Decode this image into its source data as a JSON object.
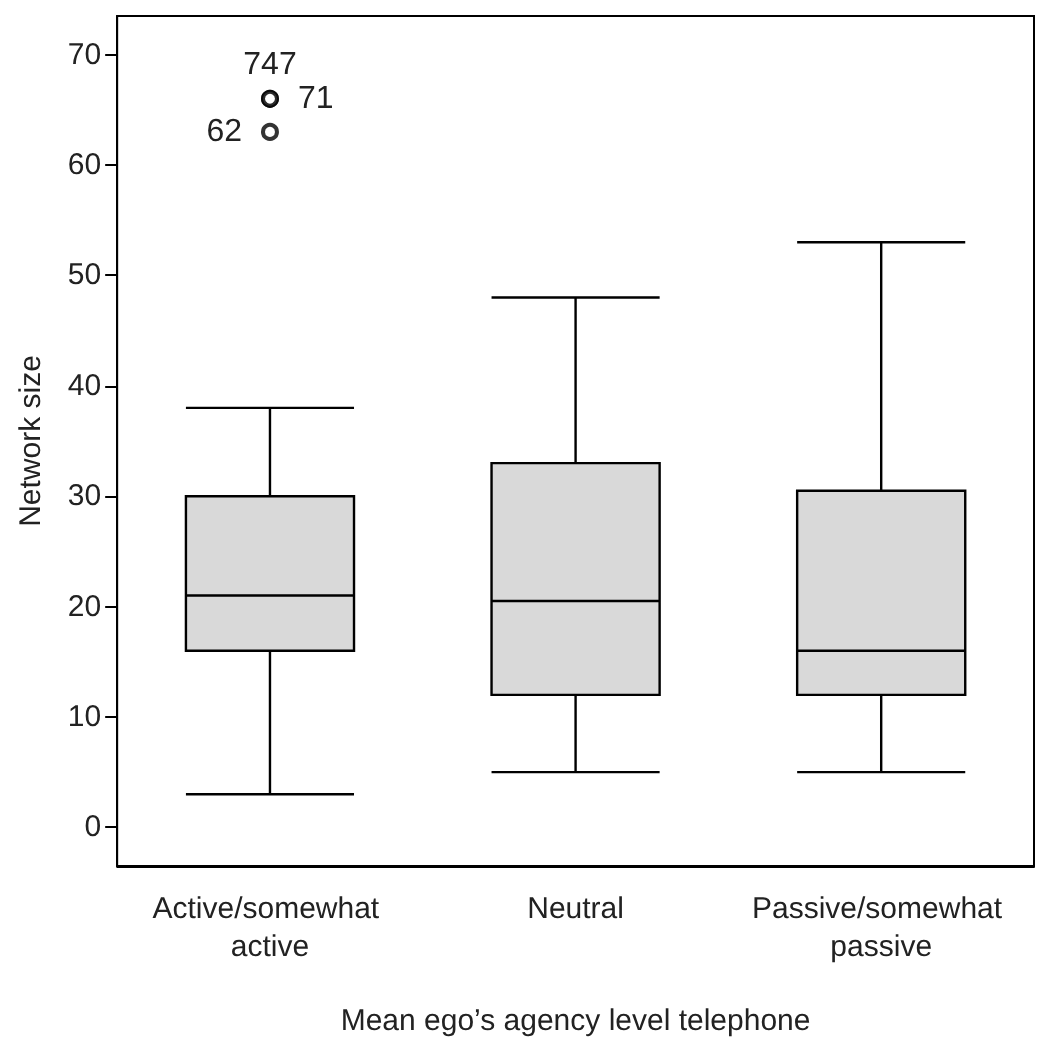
{
  "chart_data": {
    "type": "box",
    "xlabel": "Mean ego’s agency level telephone",
    "ylabel": "Network size",
    "categories": [
      "Active/somewhat active",
      "Neutral",
      "Passive/somewhat passive"
    ],
    "boxes": [
      {
        "low": 3,
        "q1": 16,
        "median": 21,
        "q3": 30,
        "high": 38,
        "outliers": [
          66,
          66,
          63
        ]
      },
      {
        "low": 5,
        "q1": 12,
        "median": 20.5,
        "q3": 33,
        "high": 48
      },
      {
        "low": 5,
        "q1": 12,
        "median": 16,
        "q3": 30.5,
        "high": 53
      }
    ],
    "color": "#d9d9d9",
    "ylim": [
      -3.5,
      73.5
    ],
    "yticks": [
      0,
      10,
      20,
      30,
      40,
      50,
      60,
      70
    ],
    "grid": false,
    "marker": "circle",
    "annotations": [
      "747",
      "71",
      "62"
    ]
  }
}
